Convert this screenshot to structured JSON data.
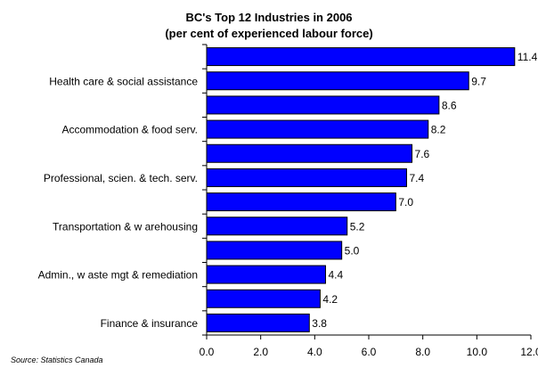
{
  "chart_data": {
    "type": "bar",
    "orientation": "horizontal",
    "title": "BC's Top 12 Industries in 2006",
    "subtitle": "(per cent of experienced labour force)",
    "categories": [
      "",
      "Health care & social assistance",
      "",
      "Accommodation & food serv.",
      "",
      "Professional, scien. & tech. serv.",
      "",
      "Transportation & w arehousing",
      "",
      "Admin., w aste mgt & remediation",
      "",
      "Finance & insurance"
    ],
    "values": [
      11.4,
      9.7,
      8.6,
      8.2,
      7.6,
      7.4,
      7.0,
      5.2,
      5.0,
      4.4,
      4.2,
      3.8
    ],
    "value_labels": [
      "11.4",
      "9.7",
      "8.6",
      "8.2",
      "7.6",
      "7.4",
      "7.0",
      "5.2",
      "5.0",
      "4.4",
      "4.2",
      "3.8"
    ],
    "xlim": [
      0,
      12
    ],
    "xticks": [
      "0.0",
      "2.0",
      "4.0",
      "6.0",
      "8.0",
      "10.0",
      "12.0"
    ],
    "grid": false,
    "bar_color": "#0000ff",
    "bar_edge_color": "#000000"
  },
  "source": "Source: Statistics Canada"
}
